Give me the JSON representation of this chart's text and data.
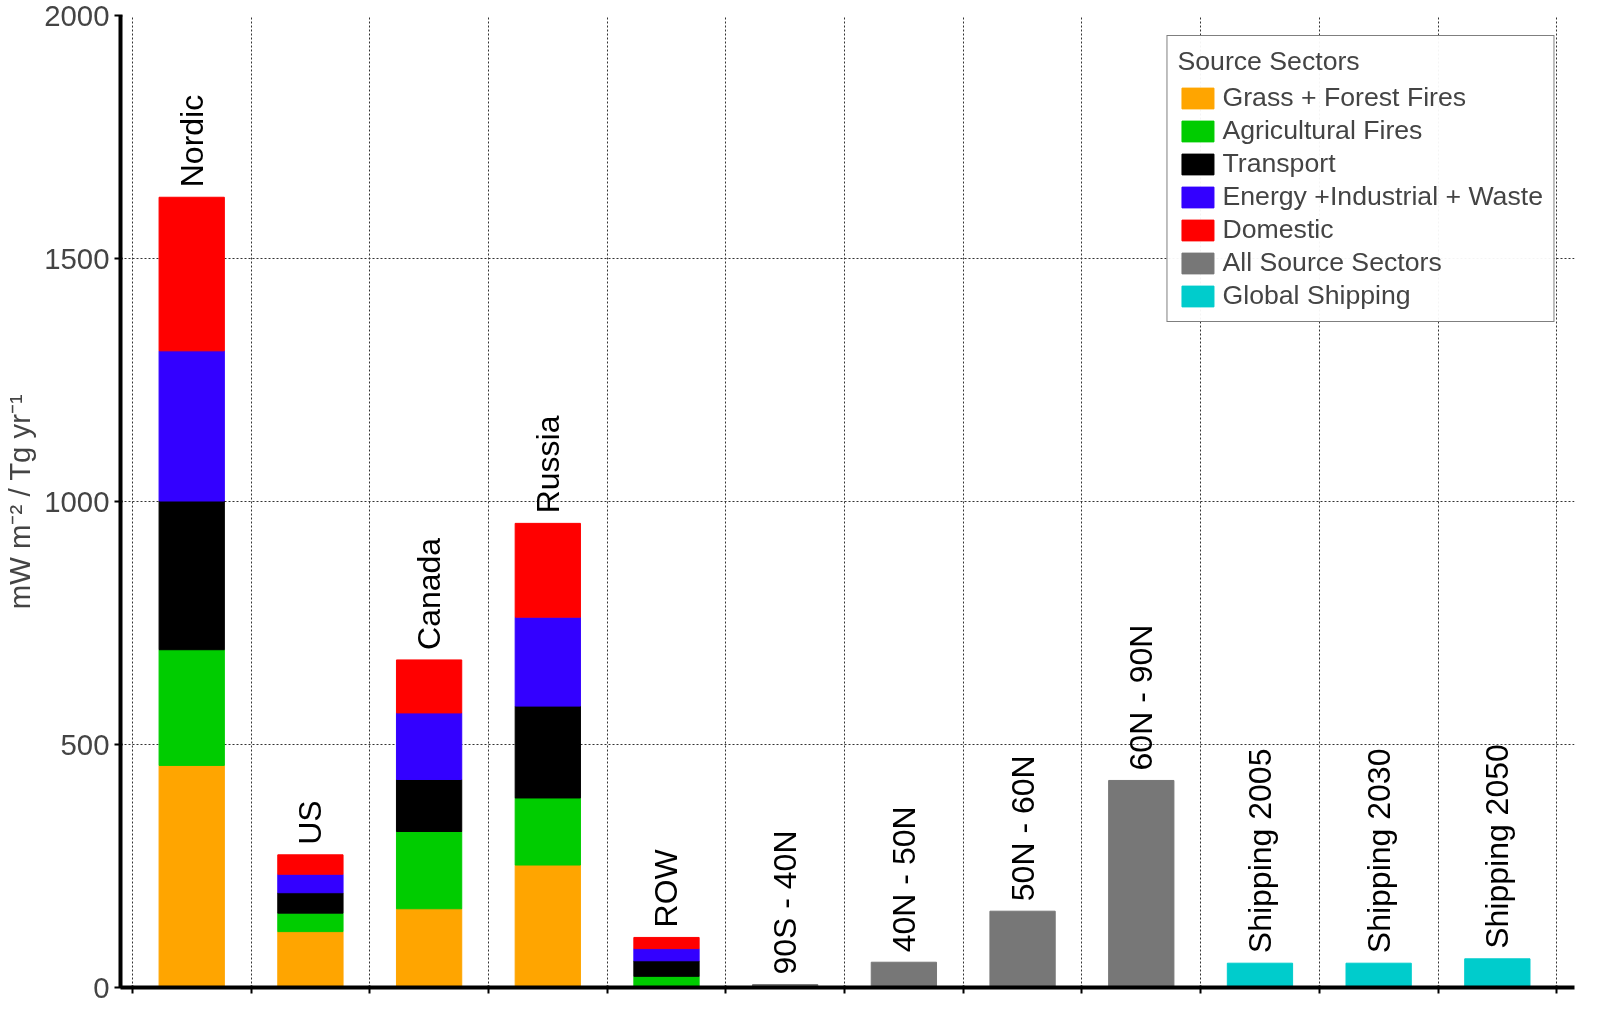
{
  "chart_data": {
    "type": "bar",
    "stacked": true,
    "ylabel": "mW m⁻² / Tg yr⁻¹",
    "legend_title": "Source Sectors",
    "legend": "top right",
    "grid": true,
    "tick_labels": "y",
    "categories": [
      "Nordic",
      "US",
      "Canada",
      "Russia",
      "ROW",
      "90S - 40N",
      "40N - 50N",
      "50N - 60N",
      "60N - 90N",
      "Shipping 2005",
      "Shipping 2030",
      "Shipping 2050"
    ],
    "ylim": [
      0,
      2000
    ],
    "yticks": [
      0,
      500,
      1000,
      1500,
      2000
    ],
    "series": [
      {
        "name": "Grass + Forest Fires",
        "color": "#ffa500",
        "values": [
          457,
          115,
          162,
          252,
          null,
          null,
          null,
          null,
          null,
          null,
          null,
          null
        ]
      },
      {
        "name": "Agricultural Fires",
        "color": "#00cc00",
        "values": [
          238,
          38,
          159,
          138,
          23,
          null,
          null,
          null,
          null,
          null,
          null,
          null
        ]
      },
      {
        "name": "Transport",
        "color": "#000000",
        "values": [
          306,
          42,
          107,
          189,
          32,
          null,
          null,
          null,
          null,
          null,
          null,
          null
        ]
      },
      {
        "name": "Energy +Industrial + Waste",
        "color": "#3300ff",
        "values": [
          309,
          38,
          137,
          183,
          25,
          null,
          null,
          null,
          null,
          null,
          null,
          null
        ]
      },
      {
        "name": "Domestic",
        "color": "#ff0000",
        "values": [
          316,
          40,
          109,
          193,
          23,
          null,
          null,
          null,
          null,
          null,
          null,
          null
        ]
      },
      {
        "name": "All Source Sectors",
        "color": "#777777",
        "values": [
          null,
          null,
          null,
          null,
          null,
          6,
          52,
          157,
          426,
          null,
          null,
          null
        ]
      },
      {
        "name": "Global Shipping",
        "color": "#00cccc",
        "values": [
          null,
          null,
          null,
          null,
          null,
          null,
          null,
          null,
          null,
          50,
          50,
          59
        ]
      }
    ]
  }
}
